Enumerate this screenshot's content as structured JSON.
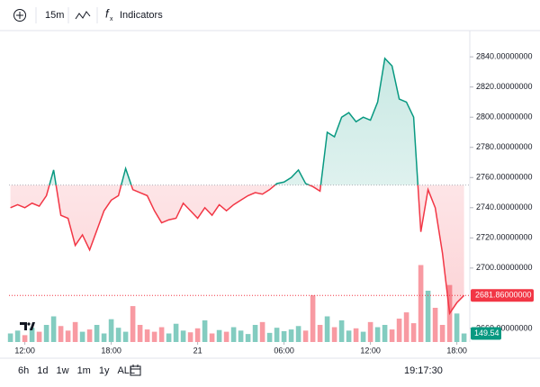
{
  "toolbar": {
    "interval": "15m",
    "indicators": "Indicators"
  },
  "ranges": [
    "6h",
    "1d",
    "1w",
    "1m",
    "1y",
    "ALL"
  ],
  "clock": "19:17:30",
  "chart_data": {
    "type": "line",
    "baseline": 2755,
    "up_color": "#089981",
    "down_color": "#f23645",
    "grid": false,
    "xlim": [
      10.9,
      42.9
    ],
    "xticks": [
      {
        "value": 12,
        "label": "12:00"
      },
      {
        "value": 18,
        "label": "18:00"
      },
      {
        "value": 24,
        "label": "21"
      },
      {
        "value": 30,
        "label": "06:00"
      },
      {
        "value": 36,
        "label": "12:00"
      },
      {
        "value": 42,
        "label": "18:00"
      }
    ],
    "ylim": [
      2651,
      2855
    ],
    "yticks": [
      {
        "value": 2840,
        "label": "2840.00000000"
      },
      {
        "value": 2820,
        "label": "2820.00000000"
      },
      {
        "value": 2800,
        "label": "2800.00000000"
      },
      {
        "value": 2780,
        "label": "2780.00000000"
      },
      {
        "value": 2760,
        "label": "2760.00000000"
      },
      {
        "value": 2740,
        "label": "2740.00000000"
      },
      {
        "value": 2720,
        "label": "2720.00000000"
      },
      {
        "value": 2700,
        "label": "2700.00000000"
      },
      {
        "value": 2660,
        "label": "2660.00000000"
      }
    ],
    "price_tag": {
      "value": 2681.86,
      "label": "2681.86000000"
    },
    "x": [
      11,
      11.5,
      12,
      12.5,
      13,
      13.5,
      14,
      14.5,
      15,
      15.5,
      16,
      16.5,
      17,
      17.5,
      18,
      18.5,
      19,
      19.5,
      20,
      20.5,
      21,
      21.5,
      22,
      22.5,
      23,
      23.5,
      24,
      24.5,
      25,
      25.5,
      26,
      26.5,
      27,
      27.5,
      28,
      28.5,
      29,
      29.5,
      30,
      30.5,
      31,
      31.5,
      32,
      32.5,
      33,
      33.5,
      34,
      34.5,
      35,
      35.5,
      36,
      36.5,
      37,
      37.5,
      38,
      38.5,
      39,
      39.5,
      40,
      40.5,
      41,
      41.5,
      42,
      42.5
    ],
    "values": [
      2740,
      2742,
      2740,
      2743,
      2741,
      2748,
      2765,
      2735,
      2733,
      2715,
      2722,
      2712,
      2725,
      2738,
      2745,
      2748,
      2766,
      2752,
      2750,
      2748,
      2738,
      2730,
      2732,
      2733,
      2743,
      2738,
      2733,
      2740,
      2735,
      2742,
      2738,
      2742,
      2745,
      2748,
      2750,
      2749,
      2752,
      2756,
      2757,
      2760,
      2765,
      2756,
      2754,
      2751,
      2790,
      2787,
      2800,
      2803,
      2797,
      2800,
      2798,
      2810,
      2839,
      2834,
      2812,
      2810,
      2800,
      2724,
      2752,
      2740,
      2710,
      2670,
      2677,
      2681.86
    ],
    "volume": {
      "ylim": [
        0,
        1500
      ],
      "values": [
        150,
        200,
        120,
        250,
        180,
        300,
        450,
        280,
        200,
        350,
        180,
        220,
        300,
        150,
        400,
        250,
        180,
        630,
        300,
        220,
        180,
        260,
        150,
        320,
        200,
        170,
        240,
        380,
        150,
        210,
        180,
        260,
        200,
        140,
        300,
        350,
        160,
        250,
        190,
        220,
        280,
        200,
        820,
        300,
        450,
        260,
        380,
        200,
        240,
        180,
        350,
        260,
        300,
        220,
        410,
        520,
        330,
        1350,
        900,
        600,
        300,
        1000,
        500,
        149.54
      ]
    }
  }
}
